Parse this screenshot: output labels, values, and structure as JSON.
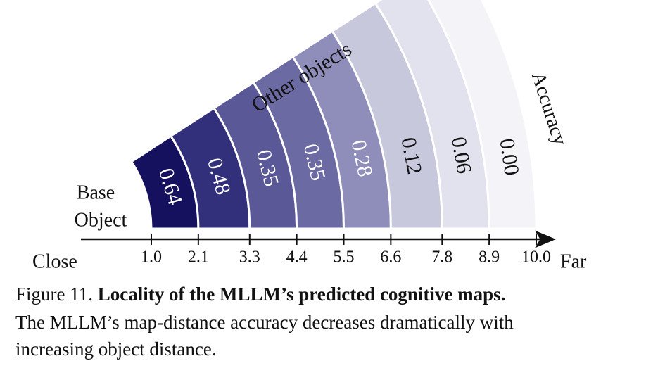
{
  "chart_data": {
    "type": "fan",
    "xticks": [
      {
        "value": 1.0,
        "label": "1.0"
      },
      2.1,
      3.3,
      4.4,
      5.5,
      6.6,
      7.8,
      8.9,
      {
        "value": 10.0,
        "label": "10.0"
      }
    ],
    "xlim": [
      1.0,
      10.0
    ],
    "values": [
      0.64,
      0.48,
      0.35,
      0.35,
      0.28,
      0.12,
      0.06,
      0.0
    ],
    "value_labels": [
      "0.64",
      "0.48",
      "0.35",
      "0.35",
      "0.28",
      "0.12",
      "0.06",
      "0.00"
    ],
    "colors": [
      "#16115e",
      "#33307b",
      "#5b5897",
      "#6c6aa3",
      "#8f8dba",
      "#c8c8dd",
      "#e2e2ee",
      "#f3f3f8"
    ],
    "base_label": [
      "Base",
      "Object"
    ],
    "other_label": "Other objects",
    "value_axis_label": "Accuracy",
    "near_label": "Close",
    "far_label": "Far"
  },
  "caption": {
    "number": "Figure 11.",
    "title": "Locality of the MLLM’s predicted cognitive maps.",
    "lines": [
      "The MLLM’s map-distance accuracy decreases dramatically with",
      "increasing object distance."
    ]
  }
}
